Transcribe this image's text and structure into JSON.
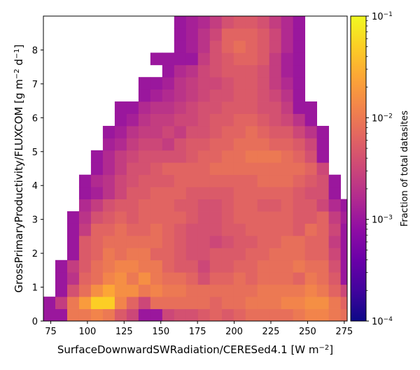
{
  "chart_data": {
    "type": "heatmap",
    "xlabel": "SurfaceDownwardSWRadiation/CERESed4.1 [W m$^{-2}$]",
    "ylabel": "GrossPrimaryProductivity/FLUXCOM [g m$^{-2}$ d$^{-1}$]",
    "colorbar_label": "Fraction of total datasites",
    "xlim": [
      70,
      277
    ],
    "ylim": [
      0,
      9
    ],
    "x_ticks": [
      "75",
      "100",
      "125",
      "150",
      "175",
      "200",
      "225",
      "250",
      "275"
    ],
    "y_ticks": [
      "0",
      "1",
      "2",
      "3",
      "4",
      "5",
      "6",
      "7",
      "8"
    ],
    "colorbar": {
      "scale": "log",
      "range": [
        0.0001,
        0.1
      ],
      "ticks": [
        {
          "value": 0.0001,
          "base": "10",
          "exp": "−4"
        },
        {
          "value": 0.001,
          "base": "10",
          "exp": "−3"
        },
        {
          "value": 0.01,
          "base": "10",
          "exp": "−2"
        },
        {
          "value": 0.1,
          "base": "10",
          "exp": "−1"
        }
      ],
      "colormap": "plasma"
    },
    "bins": {
      "x_start": 70,
      "x_step": 8.1,
      "y_start": 0,
      "y_step": 0.36,
      "cols": 26,
      "rows": 25
    },
    "cells": [
      [
        1,
        1,
        2,
        2,
        2.1,
        2,
        1.7,
        1.5,
        1,
        1,
        1.5,
        1.6,
        1.6,
        1.7,
        1.8,
        1.7,
        1.8,
        1.9,
        1.9,
        1.9,
        1.9,
        2,
        2.1,
        2.1,
        2,
        1.9
      ],
      [
        1,
        1.4,
        2,
        2.3,
        2.7,
        2.7,
        2.1,
        1.8,
        1.5,
        1.9,
        1.9,
        1.9,
        1.9,
        1.9,
        1.8,
        1.9,
        1.9,
        2,
        2,
        2,
        2.1,
        2.1,
        2.2,
        2.2,
        2,
        1.8
      ],
      [
        null,
        1,
        1.6,
        1.9,
        2.2,
        2.4,
        2.2,
        2.2,
        2,
        2.1,
        2,
        2,
        1.9,
        1.9,
        1.9,
        1.9,
        1.9,
        1.9,
        2,
        2,
        2,
        2,
        2.1,
        2,
        1.8,
        1.5
      ],
      [
        null,
        1,
        1.3,
        1.8,
        1.9,
        2.1,
        2.2,
        2,
        2.2,
        2,
        1.9,
        1.9,
        1.8,
        1.6,
        1.8,
        1.8,
        1.9,
        1.8,
        1.9,
        1.9,
        1.9,
        1.8,
        2,
        1.9,
        1.7,
        1
      ],
      [
        null,
        1,
        1.4,
        1.7,
        1.9,
        2,
        2.1,
        2.1,
        2,
        2,
        1.8,
        1.7,
        1.7,
        1.5,
        1.7,
        1.7,
        1.8,
        1.8,
        1.9,
        1.9,
        1.9,
        2,
        1.9,
        1.9,
        1.6,
        1
      ],
      [
        null,
        null,
        1,
        1.7,
        1.8,
        2,
        1.9,
        2,
        2,
        1.8,
        1.8,
        1.7,
        1.6,
        1.6,
        1.7,
        1.7,
        1.7,
        1.8,
        1.8,
        1.9,
        1.9,
        1.9,
        1.8,
        1.8,
        1.5,
        1
      ],
      [
        null,
        null,
        1,
        1.7,
        1.8,
        1.9,
        1.9,
        1.9,
        1.9,
        1.9,
        1.8,
        1.7,
        1.6,
        1.6,
        1.5,
        1.6,
        1.7,
        1.7,
        1.8,
        1.8,
        1.9,
        1.9,
        1.8,
        1.8,
        1.4,
        1
      ],
      [
        null,
        null,
        1,
        1.4,
        1.8,
        1.8,
        1.9,
        1.8,
        1.8,
        1.9,
        1.8,
        1.7,
        1.6,
        1.6,
        1.6,
        1.7,
        1.7,
        1.8,
        1.8,
        1.8,
        1.8,
        1.7,
        1.9,
        1.8,
        1.5,
        1
      ],
      [
        null,
        null,
        1,
        1.3,
        1.6,
        1.7,
        1.8,
        1.7,
        1.8,
        1.8,
        1.8,
        1.8,
        1.7,
        1.6,
        1.6,
        1.7,
        1.8,
        1.8,
        1.8,
        1.8,
        1.8,
        1.7,
        1.7,
        1.8,
        1.4,
        1.1
      ],
      [
        null,
        null,
        null,
        1.2,
        1.4,
        1.6,
        1.7,
        1.7,
        1.8,
        1.8,
        1.8,
        1.7,
        1.7,
        1.6,
        1.6,
        1.7,
        1.8,
        1.8,
        1.7,
        1.7,
        1.8,
        1.7,
        1.7,
        1.5,
        1.2,
        1
      ],
      [
        null,
        null,
        null,
        1,
        1.1,
        1.3,
        1.5,
        1.7,
        1.7,
        1.8,
        1.8,
        1.8,
        1.7,
        1.7,
        1.7,
        1.7,
        1.8,
        1.8,
        1.8,
        1.8,
        1.8,
        1.7,
        1.6,
        1.6,
        1,
        null
      ],
      [
        null,
        null,
        null,
        1,
        1.2,
        1.3,
        1.5,
        1.6,
        1.7,
        1.7,
        1.7,
        1.8,
        1.8,
        1.8,
        1.8,
        1.8,
        1.8,
        1.8,
        1.9,
        1.9,
        1.9,
        1.8,
        1.7,
        1.6,
        1,
        null
      ],
      [
        null,
        null,
        null,
        null,
        1,
        1.2,
        1.4,
        1.6,
        1.6,
        1.7,
        1.8,
        1.8,
        1.8,
        1.8,
        1.9,
        1.9,
        1.9,
        1.9,
        1.9,
        1.9,
        1.9,
        1.9,
        1.8,
        1.5,
        null,
        null
      ],
      [
        null,
        null,
        null,
        null,
        1,
        1.2,
        1.4,
        1.5,
        1.6,
        1.6,
        1.6,
        1.6,
        1.7,
        1.8,
        1.8,
        1.9,
        1.9,
        2,
        2,
        2,
        1.9,
        1.8,
        1.6,
        1,
        null,
        null
      ],
      [
        null,
        null,
        null,
        null,
        null,
        1.1,
        1.2,
        1.4,
        1.5,
        1.5,
        1.4,
        1.6,
        1.7,
        1.7,
        1.8,
        1.8,
        1.9,
        1.9,
        1.9,
        1.8,
        1.8,
        1.7,
        1.5,
        1,
        null,
        null
      ],
      [
        null,
        null,
        null,
        null,
        null,
        1,
        1.1,
        1.3,
        1.4,
        1.4,
        1.5,
        1.4,
        1.6,
        1.6,
        1.7,
        1.8,
        1.8,
        1.9,
        1.8,
        1.7,
        1.7,
        1.5,
        1.3,
        1,
        null,
        null
      ],
      [
        null,
        null,
        null,
        null,
        null,
        null,
        1,
        1.1,
        1.3,
        1.4,
        1.4,
        1.5,
        1.5,
        1.6,
        1.7,
        1.7,
        1.8,
        1.8,
        1.7,
        1.6,
        1.5,
        1.3,
        1,
        null,
        null,
        null
      ],
      [
        null,
        null,
        null,
        null,
        null,
        null,
        1,
        1,
        1.2,
        1.3,
        1.3,
        1.4,
        1.5,
        1.6,
        1.6,
        1.7,
        1.7,
        1.7,
        1.6,
        1.6,
        1.4,
        1,
        1,
        null,
        null,
        null
      ],
      [
        null,
        null,
        null,
        null,
        null,
        null,
        null,
        null,
        1,
        1.1,
        1.2,
        1.3,
        1.4,
        1.5,
        1.6,
        1.6,
        1.7,
        1.7,
        1.6,
        1.5,
        1.3,
        1,
        null,
        null,
        null,
        null
      ],
      [
        null,
        null,
        null,
        null,
        null,
        null,
        null,
        null,
        1,
        1,
        1.1,
        1.3,
        1.4,
        1.5,
        1.5,
        1.6,
        1.7,
        1.7,
        1.6,
        1.4,
        1.2,
        1,
        null,
        null,
        null,
        null
      ],
      [
        null,
        null,
        null,
        null,
        null,
        null,
        null,
        null,
        null,
        null,
        1,
        1.2,
        1.3,
        1.5,
        1.6,
        1.7,
        1.7,
        1.7,
        1.6,
        1.4,
        1.1,
        1,
        null,
        null,
        null,
        null
      ],
      [
        null,
        null,
        null,
        null,
        null,
        null,
        null,
        null,
        null,
        1,
        1,
        1,
        1,
        1.4,
        1.6,
        1.7,
        1.8,
        1.8,
        1.7,
        1.4,
        1.1,
        1,
        null,
        null,
        null,
        null
      ],
      [
        null,
        null,
        null,
        null,
        null,
        null,
        null,
        null,
        null,
        null,
        null,
        1,
        1.1,
        1.3,
        1.6,
        1.8,
        1.9,
        1.8,
        1.7,
        1.5,
        1.2,
        1,
        null,
        null,
        null,
        null
      ],
      [
        null,
        null,
        null,
        null,
        null,
        null,
        null,
        null,
        null,
        null,
        null,
        1,
        1.1,
        1.3,
        1.5,
        1.8,
        1.8,
        1.8,
        1.7,
        1.5,
        1.2,
        1,
        null,
        null,
        null,
        null
      ],
      [
        null,
        null,
        null,
        null,
        null,
        null,
        null,
        null,
        null,
        null,
        null,
        1,
        1.1,
        1.2,
        1.4,
        1.6,
        1.7,
        1.7,
        1.6,
        1.4,
        1.2,
        1,
        null,
        null,
        null,
        null
      ]
    ]
  }
}
